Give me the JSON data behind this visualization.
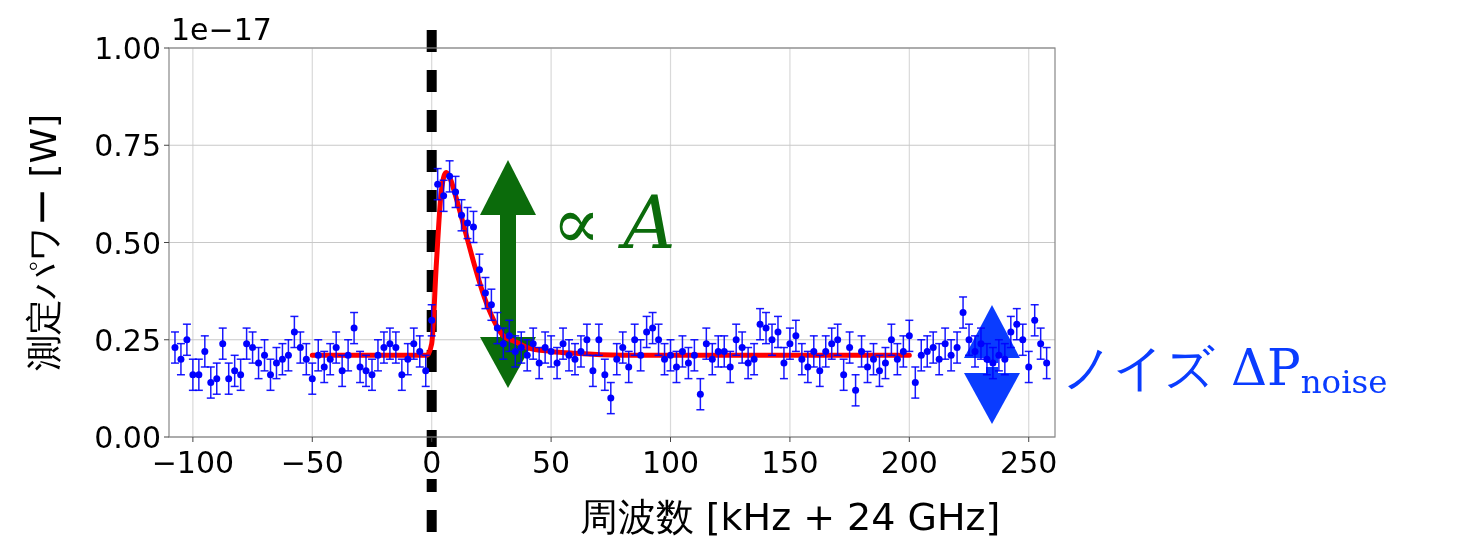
{
  "chart_data": {
    "type": "scatter",
    "xlabel": "周波数 [kHz + 24 GHz]",
    "ylabel": "測定パワー [W]",
    "xlim": [
      -110,
      261
    ],
    "ylim": [
      0,
      1
    ],
    "xticks": [
      {
        "value": -100,
        "label": "−100"
      },
      {
        "value": -50,
        "label": "−50"
      },
      0,
      50,
      100,
      150,
      200,
      250
    ],
    "yticks": [
      {
        "value": 0,
        "label": "0.00"
      },
      0.25,
      {
        "value": 0.5,
        "label": "0.50"
      },
      0.75,
      {
        "value": 1,
        "label": "1.00"
      }
    ],
    "grid": true,
    "marker": "circle",
    "series": [
      {
        "color": "#0000ff",
        "x": [
          -107.5,
          -105,
          -102.5,
          -100,
          -97.5,
          -95,
          -92.5,
          -90,
          -87.5,
          -85,
          -82.5,
          -80,
          -77.5,
          -75,
          -72.5,
          -70,
          -67.5,
          -65,
          -62.5,
          -60,
          -57.5,
          -55,
          -52.5,
          -50,
          -47.5,
          -45,
          -42.5,
          -40,
          -37.5,
          -35,
          -32.5,
          -30,
          -27.5,
          -25,
          -22.5,
          -20,
          -17.5,
          -15,
          -12.5,
          -10,
          -7.5,
          -5,
          -2.5,
          0,
          2.5,
          5,
          7.5,
          10,
          12.5,
          15,
          17.5,
          20,
          22.5,
          25,
          27.5,
          30,
          32.5,
          35,
          37.5,
          40,
          42.5,
          45,
          47.5,
          50,
          52.5,
          55,
          57.5,
          60,
          62.5,
          65,
          67.5,
          70,
          72.5,
          75,
          77.5,
          80,
          82.5,
          85,
          87.5,
          90,
          92.5,
          95,
          97.5,
          100,
          102.5,
          105,
          107.5,
          110,
          112.5,
          115,
          117.5,
          120,
          122.5,
          125,
          127.5,
          130,
          132.5,
          135,
          137.5,
          140,
          142.5,
          145,
          147.5,
          150,
          152.5,
          155,
          157.5,
          160,
          162.5,
          165,
          167.5,
          170,
          172.5,
          175,
          177.5,
          180,
          182.5,
          185,
          187.5,
          190,
          192.5,
          195,
          197.5,
          200,
          202.5,
          205,
          207.5,
          210,
          212.5,
          215,
          217.5,
          220,
          222.5,
          225,
          227.5,
          230,
          232.5,
          235,
          237.5,
          240,
          242.5,
          245,
          247.5,
          250,
          252.5,
          255,
          257.5
        ],
        "values": [
          0.23,
          0.2,
          0.25,
          0.16,
          0.16,
          0.22,
          0.14,
          0.15,
          0.24,
          0.15,
          0.17,
          0.16,
          0.24,
          0.23,
          0.19,
          0.21,
          0.16,
          0.19,
          0.2,
          0.21,
          0.27,
          0.23,
          0.2,
          0.15,
          0.21,
          0.18,
          0.2,
          0.23,
          0.17,
          0.21,
          0.28,
          0.18,
          0.17,
          0.16,
          0.21,
          0.23,
          0.24,
          0.23,
          0.16,
          0.2,
          0.24,
          0.22,
          0.17,
          0.3,
          0.65,
          0.62,
          0.67,
          0.63,
          0.57,
          0.55,
          0.54,
          0.43,
          0.37,
          0.34,
          0.28,
          0.24,
          0.26,
          0.22,
          0.23,
          0.21,
          0.24,
          0.19,
          0.23,
          0.22,
          0.19,
          0.24,
          0.21,
          0.2,
          0.22,
          0.25,
          0.17,
          0.25,
          0.16,
          0.1,
          0.2,
          0.23,
          0.18,
          0.25,
          0.21,
          0.27,
          0.28,
          0.25,
          0.2,
          0.21,
          0.18,
          0.22,
          0.19,
          0.21,
          0.11,
          0.24,
          0.2,
          0.22,
          0.22,
          0.18,
          0.25,
          0.23,
          0.19,
          0.2,
          0.29,
          0.28,
          0.25,
          0.27,
          0.19,
          0.24,
          0.26,
          0.2,
          0.18,
          0.22,
          0.17,
          0.22,
          0.24,
          0.25,
          0.16,
          0.23,
          0.12,
          0.22,
          0.18,
          0.2,
          0.17,
          0.19,
          0.25,
          0.2,
          0.22,
          0.26,
          0.14,
          0.21,
          0.22,
          0.23,
          0.2,
          0.24,
          0.21,
          0.23,
          0.32,
          0.25,
          0.22,
          0.24,
          0.2,
          0.19,
          0.21,
          0.2,
          0.27,
          0.29,
          0.25,
          0.18,
          0.3,
          0.24,
          0.19
        ],
        "errors": [
          0.04,
          0.04,
          0.04,
          0.04,
          0.04,
          0.04,
          0.04,
          0.04,
          0.04,
          0.04,
          0.04,
          0.04,
          0.04,
          0.04,
          0.04,
          0.04,
          0.04,
          0.04,
          0.04,
          0.04,
          0.04,
          0.04,
          0.04,
          0.04,
          0.04,
          0.04,
          0.04,
          0.04,
          0.04,
          0.04,
          0.04,
          0.04,
          0.04,
          0.04,
          0.04,
          0.04,
          0.04,
          0.04,
          0.04,
          0.04,
          0.04,
          0.04,
          0.04,
          0.04,
          0.04,
          0.04,
          0.04,
          0.04,
          0.04,
          0.04,
          0.04,
          0.04,
          0.04,
          0.04,
          0.04,
          0.04,
          0.04,
          0.04,
          0.04,
          0.04,
          0.04,
          0.04,
          0.04,
          0.04,
          0.04,
          0.04,
          0.04,
          0.04,
          0.04,
          0.04,
          0.04,
          0.04,
          0.04,
          0.04,
          0.04,
          0.04,
          0.04,
          0.04,
          0.04,
          0.04,
          0.04,
          0.04,
          0.04,
          0.04,
          0.04,
          0.04,
          0.04,
          0.04,
          0.04,
          0.04,
          0.04,
          0.04,
          0.04,
          0.04,
          0.04,
          0.04,
          0.04,
          0.04,
          0.04,
          0.04,
          0.04,
          0.04,
          0.04,
          0.04,
          0.04,
          0.04,
          0.04,
          0.04,
          0.04,
          0.04,
          0.04,
          0.04,
          0.04,
          0.04,
          0.04,
          0.04,
          0.04,
          0.04,
          0.04,
          0.04,
          0.04,
          0.04,
          0.04,
          0.04,
          0.04,
          0.04,
          0.04,
          0.04,
          0.04,
          0.04,
          0.04,
          0.04,
          0.04,
          0.04,
          0.04,
          0.04,
          0.04,
          0.04,
          0.04,
          0.04,
          0.04,
          0.04,
          0.04,
          0.04,
          0.04,
          0.04,
          0.04
        ]
      },
      {
        "type": "line",
        "color": "#ff0000",
        "marker": "none",
        "x": [
          -50,
          -2,
          0,
          2,
          4,
          6,
          8,
          10,
          14,
          18,
          22,
          26,
          30,
          35,
          40,
          50,
          60,
          80,
          120,
          160,
          200
        ],
        "values": [
          0.21,
          0.21,
          0.24,
          0.45,
          0.63,
          0.68,
          0.66,
          0.62,
          0.53,
          0.44,
          0.36,
          0.3,
          0.26,
          0.245,
          0.23,
          0.22,
          0.215,
          0.21,
          0.21,
          0.21,
          0.21
        ]
      }
    ],
    "ref_lines": [
      {
        "axis": "x",
        "value": 0,
        "color": "#000000",
        "line_style": "dashed"
      }
    ],
    "annotations": [
      "1e−17",
      "∝ A",
      "ノイズ ΔP$_{noise}$"
    ]
  }
}
